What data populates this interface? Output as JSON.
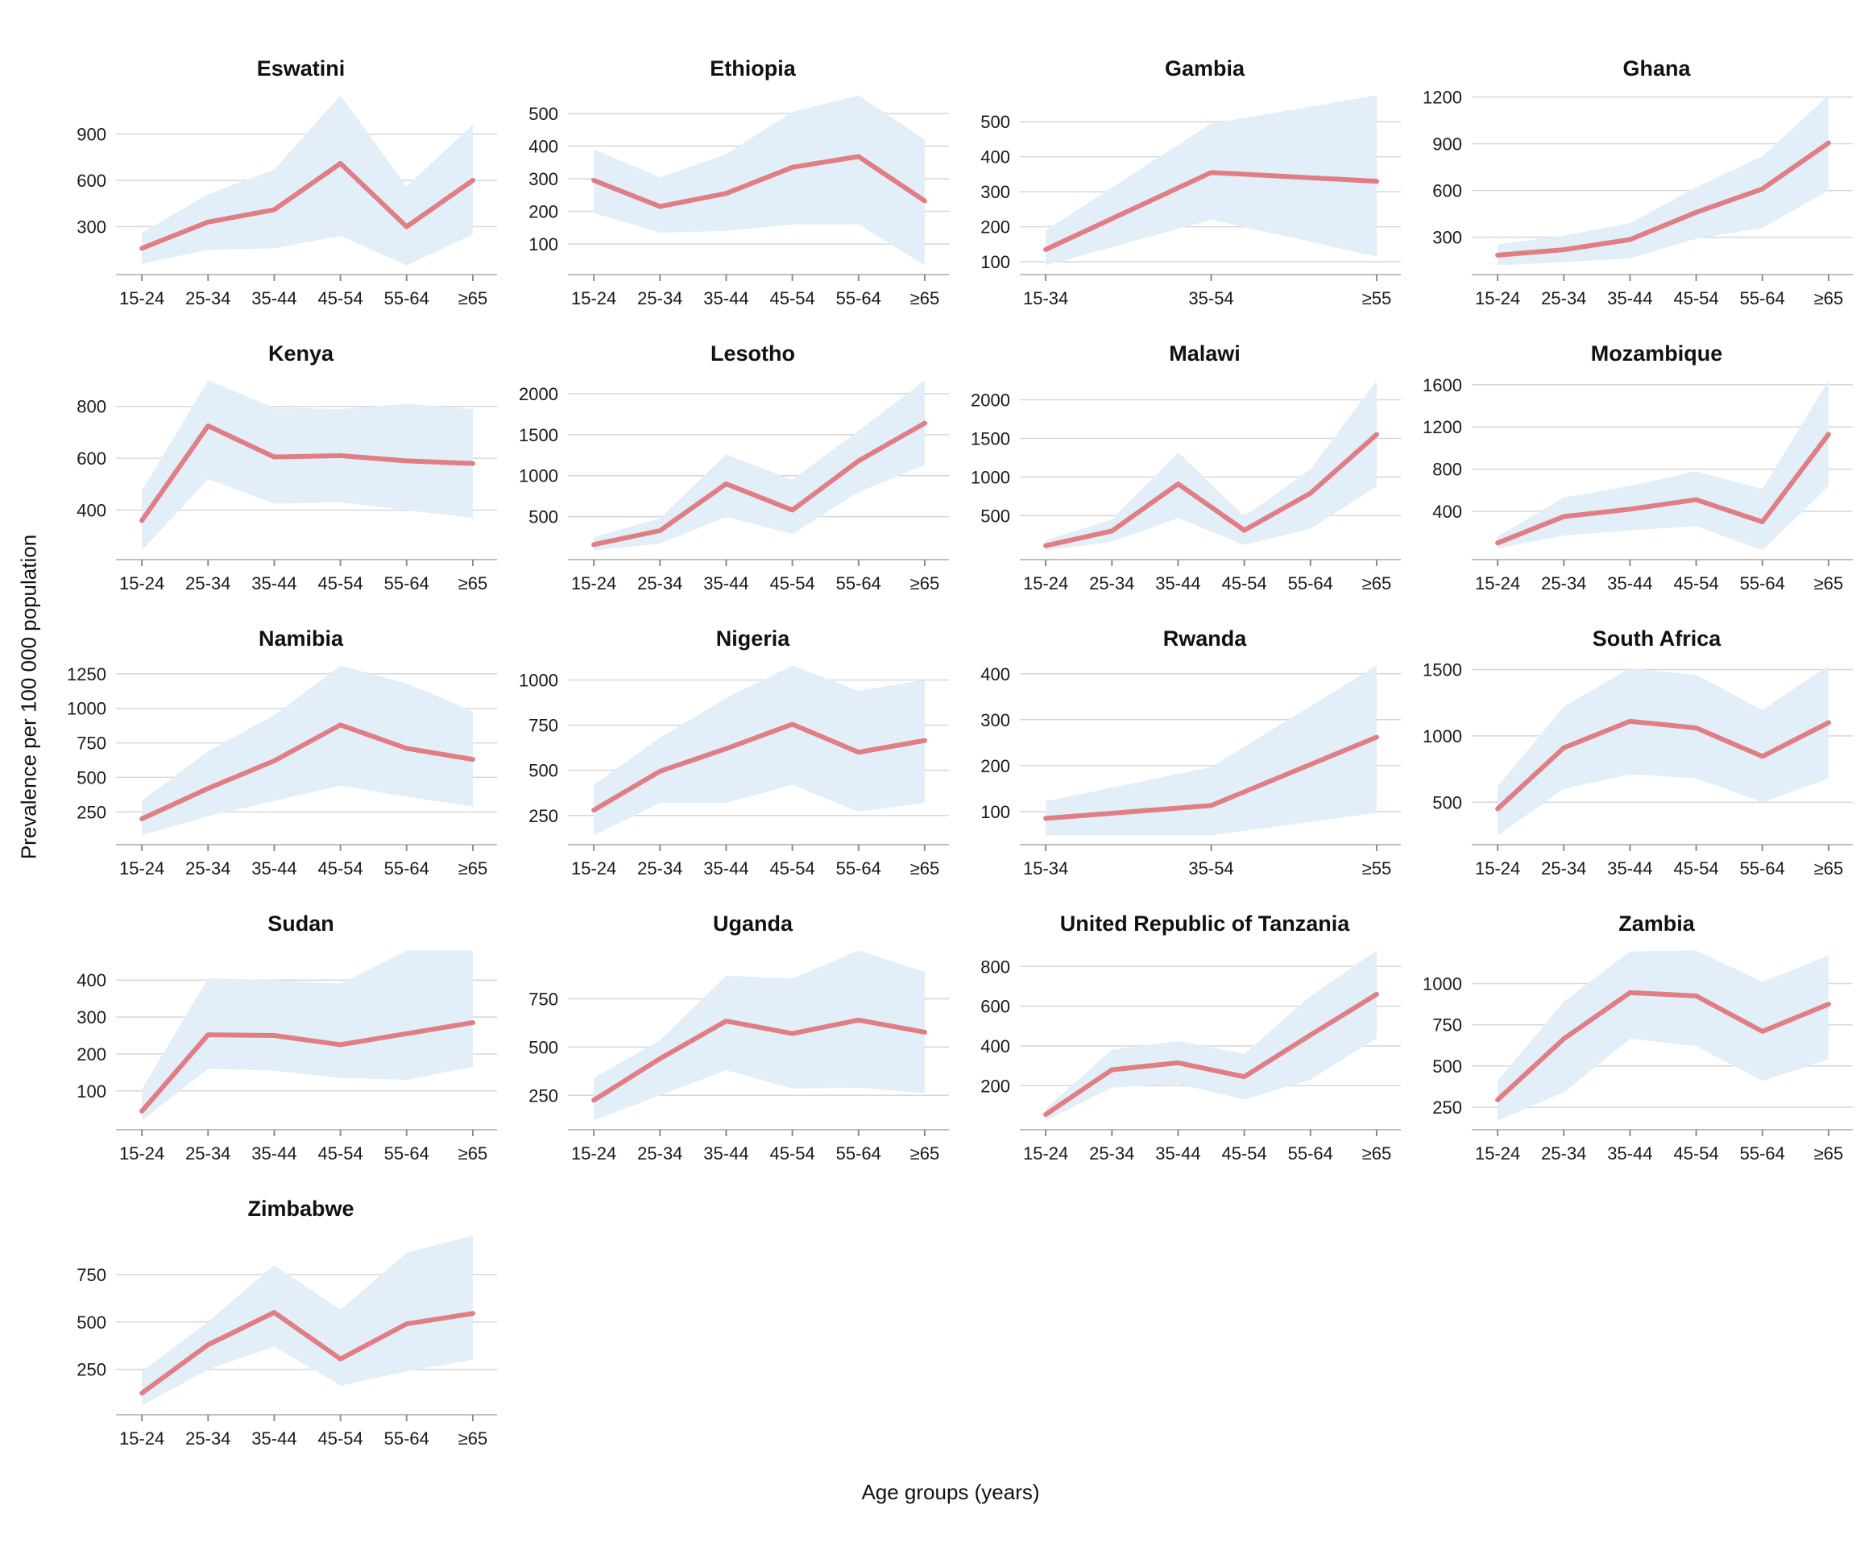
{
  "figure": {
    "y_axis_label": "Prevalence per 100 000 population",
    "x_axis_label": "Age groups (years)",
    "colors": {
      "line": "#e07e84",
      "band": "#e2eef8",
      "grid": "#d7d7d7",
      "axis": "#bfbfbf",
      "tick": "#8c8c8c",
      "text": "#1a1a1a"
    }
  },
  "chart_data": [
    {
      "type": "line",
      "title": "Eswatini",
      "categories": [
        "15-24",
        "25-34",
        "35-44",
        "45-54",
        "55-64",
        "≥65"
      ],
      "yticks": [
        300,
        600,
        900
      ],
      "prevalence": [
        160,
        330,
        410,
        710,
        300,
        600
      ],
      "ci_lower": [
        60,
        150,
        160,
        240,
        50,
        250
      ],
      "ci_upper": [
        260,
        510,
        670,
        1150,
        560,
        960
      ]
    },
    {
      "type": "line",
      "title": "Ethiopia",
      "categories": [
        "15-24",
        "25-34",
        "35-44",
        "45-54",
        "55-64",
        "≥65"
      ],
      "yticks": [
        100,
        200,
        300,
        400,
        500
      ],
      "prevalence": [
        295,
        215,
        255,
        335,
        368,
        232
      ],
      "ci_lower": [
        195,
        135,
        140,
        160,
        160,
        35
      ],
      "ci_upper": [
        390,
        305,
        375,
        505,
        555,
        420
      ]
    },
    {
      "type": "line",
      "title": "Gambia",
      "categories": [
        "15-34",
        "35-54",
        "≥55"
      ],
      "yticks": [
        100,
        200,
        300,
        400,
        500
      ],
      "prevalence": [
        135,
        355,
        330
      ],
      "ci_lower": [
        90,
        220,
        115
      ],
      "ci_upper": [
        190,
        495,
        575
      ]
    },
    {
      "type": "line",
      "title": "Ghana",
      "categories": [
        "15-24",
        "25-34",
        "35-44",
        "45-54",
        "55-64",
        "≥65"
      ],
      "yticks": [
        300,
        600,
        900,
        1200
      ],
      "prevalence": [
        185,
        220,
        285,
        460,
        610,
        905
      ],
      "ci_lower": [
        120,
        140,
        165,
        290,
        360,
        600
      ],
      "ci_upper": [
        255,
        310,
        390,
        620,
        820,
        1210
      ]
    },
    {
      "type": "line",
      "title": "Kenya",
      "categories": [
        "15-24",
        "25-34",
        "35-44",
        "45-54",
        "55-64",
        "≥65"
      ],
      "yticks": [
        400,
        600,
        800
      ],
      "prevalence": [
        360,
        725,
        605,
        610,
        590,
        580
      ],
      "ci_lower": [
        245,
        520,
        425,
        430,
        400,
        370
      ],
      "ci_upper": [
        475,
        900,
        795,
        790,
        810,
        790
      ]
    },
    {
      "type": "line",
      "title": "Lesotho",
      "categories": [
        "15-24",
        "25-34",
        "35-44",
        "45-54",
        "55-64",
        "≥65"
      ],
      "yticks": [
        500,
        1000,
        1500,
        2000
      ],
      "prevalence": [
        160,
        330,
        900,
        580,
        1180,
        1640
      ],
      "ci_lower": [
        90,
        170,
        500,
        290,
        800,
        1130
      ],
      "ci_upper": [
        250,
        480,
        1260,
        950,
        1550,
        2160
      ]
    },
    {
      "type": "line",
      "title": "Malawi",
      "categories": [
        "15-24",
        "25-34",
        "35-44",
        "45-54",
        "55-64",
        "≥65"
      ],
      "yticks": [
        500,
        1000,
        1500,
        2000
      ],
      "prevalence": [
        110,
        300,
        910,
        310,
        790,
        1550
      ],
      "ci_lower": [
        50,
        160,
        470,
        120,
        330,
        880
      ],
      "ci_upper": [
        180,
        450,
        1320,
        490,
        1100,
        2250
      ]
    },
    {
      "type": "line",
      "title": "Mozambique",
      "categories": [
        "15-24",
        "25-34",
        "35-44",
        "45-54",
        "55-64",
        "≥65"
      ],
      "yticks": [
        400,
        800,
        1200,
        1600
      ],
      "prevalence": [
        100,
        350,
        420,
        510,
        300,
        1130
      ],
      "ci_lower": [
        50,
        170,
        220,
        260,
        30,
        640
      ],
      "ci_upper": [
        160,
        530,
        640,
        780,
        610,
        1640
      ]
    },
    {
      "type": "line",
      "title": "Namibia",
      "categories": [
        "15-24",
        "25-34",
        "35-44",
        "45-54",
        "55-64",
        "≥65"
      ],
      "yticks": [
        250,
        500,
        750,
        1000,
        1250
      ],
      "prevalence": [
        200,
        420,
        620,
        880,
        710,
        630
      ],
      "ci_lower": [
        80,
        220,
        330,
        440,
        360,
        290
      ],
      "ci_upper": [
        330,
        690,
        950,
        1310,
        1180,
        980
      ]
    },
    {
      "type": "line",
      "title": "Nigeria",
      "categories": [
        "15-24",
        "25-34",
        "35-44",
        "45-54",
        "55-64",
        "≥65"
      ],
      "yticks": [
        250,
        500,
        750,
        1000
      ],
      "prevalence": [
        280,
        495,
        620,
        755,
        600,
        665
      ],
      "ci_lower": [
        140,
        320,
        320,
        420,
        270,
        320
      ],
      "ci_upper": [
        420,
        680,
        900,
        1080,
        940,
        1000
      ]
    },
    {
      "type": "line",
      "title": "Rwanda",
      "categories": [
        "15-34",
        "35-54",
        "≥55"
      ],
      "yticks": [
        100,
        200,
        300,
        400
      ],
      "prevalence": [
        85,
        113,
        262
      ],
      "ci_lower": [
        48,
        48,
        97
      ],
      "ci_upper": [
        122,
        197,
        418
      ]
    },
    {
      "type": "line",
      "title": "South Africa",
      "categories": [
        "15-24",
        "25-34",
        "35-44",
        "45-54",
        "55-64",
        "≥65"
      ],
      "yticks": [
        500,
        1000,
        1500
      ],
      "prevalence": [
        450,
        910,
        1110,
        1060,
        845,
        1100
      ],
      "ci_lower": [
        250,
        600,
        710,
        680,
        500,
        680
      ],
      "ci_upper": [
        620,
        1220,
        1510,
        1460,
        1195,
        1530
      ]
    },
    {
      "type": "line",
      "title": "Sudan",
      "categories": [
        "15-24",
        "25-34",
        "35-44",
        "45-54",
        "55-64",
        "≥65"
      ],
      "yticks": [
        100,
        200,
        300,
        400
      ],
      "prevalence": [
        45,
        252,
        250,
        225,
        255,
        285
      ],
      "ci_lower": [
        20,
        160,
        155,
        135,
        130,
        165
      ],
      "ci_upper": [
        105,
        405,
        400,
        390,
        480,
        480
      ]
    },
    {
      "type": "line",
      "title": "Uganda",
      "categories": [
        "15-24",
        "25-34",
        "35-44",
        "45-54",
        "55-64",
        "≥65"
      ],
      "yticks": [
        250,
        500,
        750
      ],
      "prevalence": [
        225,
        440,
        635,
        570,
        640,
        577
      ],
      "ci_lower": [
        120,
        250,
        380,
        285,
        290,
        260
      ],
      "ci_upper": [
        340,
        535,
        870,
        855,
        1000,
        890
      ]
    },
    {
      "type": "line",
      "title": "United Republic of Tanzania",
      "categories": [
        "15-24",
        "25-34",
        "35-44",
        "45-54",
        "55-64",
        "≥65"
      ],
      "yticks": [
        200,
        400,
        600,
        800
      ],
      "prevalence": [
        55,
        280,
        315,
        245,
        455,
        660
      ],
      "ci_lower": [
        25,
        190,
        210,
        130,
        230,
        440
      ],
      "ci_upper": [
        85,
        380,
        425,
        360,
        650,
        880
      ]
    },
    {
      "type": "line",
      "title": "Zambia",
      "categories": [
        "15-24",
        "25-34",
        "35-44",
        "45-54",
        "55-64",
        "≥65"
      ],
      "yticks": [
        250,
        500,
        750,
        1000
      ],
      "prevalence": [
        295,
        665,
        945,
        925,
        710,
        875
      ],
      "ci_lower": [
        170,
        340,
        665,
        620,
        410,
        540
      ],
      "ci_upper": [
        410,
        890,
        1195,
        1200,
        1010,
        1170
      ]
    },
    {
      "type": "line",
      "title": "Zimbabwe",
      "categories": [
        "15-24",
        "25-34",
        "35-44",
        "45-54",
        "55-64",
        "≥65"
      ],
      "yticks": [
        250,
        500,
        750
      ],
      "prevalence": [
        125,
        380,
        550,
        305,
        490,
        545
      ],
      "ci_lower": [
        60,
        250,
        370,
        165,
        240,
        300
      ],
      "ci_upper": [
        240,
        500,
        800,
        565,
        865,
        955
      ]
    }
  ]
}
